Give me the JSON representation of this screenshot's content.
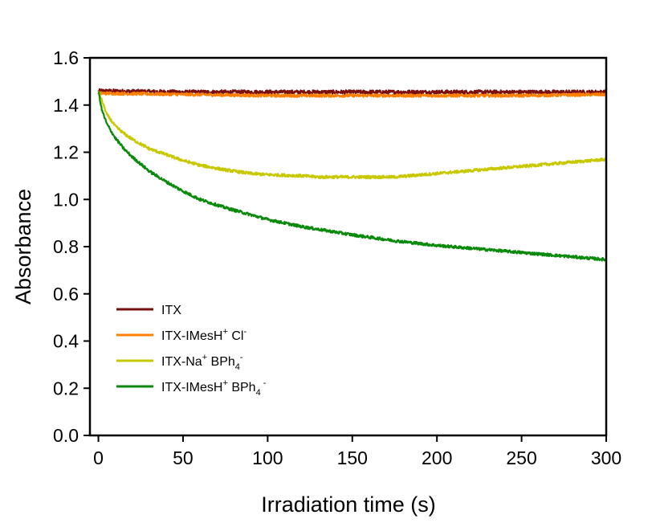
{
  "chart_data": {
    "type": "line",
    "title": "",
    "xlabel": "Irradiation time (s)",
    "ylabel": "Absorbance",
    "xlim": [
      -5,
      300
    ],
    "ylim": [
      0.0,
      1.6
    ],
    "xticks": [
      0,
      50,
      100,
      150,
      200,
      250,
      300
    ],
    "yticks": [
      0.0,
      0.2,
      0.4,
      0.6,
      0.8,
      1.0,
      1.2,
      1.4,
      1.6
    ],
    "xtick_labels": [
      "0",
      "50",
      "100",
      "150",
      "200",
      "250",
      "300"
    ],
    "ytick_labels": [
      "0.0",
      "0.2",
      "0.4",
      "0.6",
      "0.8",
      "1.0",
      "1.2",
      "1.4",
      "1.6"
    ],
    "grid": false,
    "legend_position": "bottom-left",
    "series": [
      {
        "name": "ITX",
        "legend_base": "ITX",
        "legend_sup1": "",
        "legend_mid": "",
        "legend_sub": "",
        "legend_sup2": "",
        "color": "#7a0f0f",
        "noise": 0.008,
        "x": [
          0,
          50,
          100,
          150,
          200,
          250,
          300
        ],
        "y": [
          1.46,
          1.455,
          1.455,
          1.455,
          1.455,
          1.455,
          1.455
        ]
      },
      {
        "name": "ITX-IMesH+ Cl-",
        "legend_base": "ITX-IMesH",
        "legend_sup1": "+",
        "legend_mid": " Cl",
        "legend_sub": "",
        "legend_sup2": "-",
        "color": "#ff8000",
        "noise": 0.006,
        "x": [
          0,
          50,
          100,
          150,
          200,
          250,
          300
        ],
        "y": [
          1.45,
          1.445,
          1.44,
          1.44,
          1.44,
          1.44,
          1.445
        ]
      },
      {
        "name": "ITX-Na+ BPh4-",
        "legend_base": "ITX-Na",
        "legend_sup1": "+",
        "legend_mid": " BPh",
        "legend_sub": "4",
        "legend_sup2": "-",
        "color": "#c8c800",
        "noise": 0.006,
        "x": [
          0,
          2,
          5,
          10,
          15,
          20,
          30,
          40,
          50,
          60,
          75,
          90,
          100,
          120,
          130,
          150,
          175,
          200,
          225,
          250,
          275,
          300
        ],
        "y": [
          1.46,
          1.42,
          1.36,
          1.31,
          1.28,
          1.255,
          1.215,
          1.19,
          1.165,
          1.145,
          1.125,
          1.11,
          1.105,
          1.1,
          1.095,
          1.095,
          1.095,
          1.11,
          1.125,
          1.14,
          1.155,
          1.17
        ]
      },
      {
        "name": "ITX-IMesH+ BPh4 -",
        "legend_base": "ITX-IMesH",
        "legend_sup1": "+",
        "legend_mid": " BPh",
        "legend_sub": "4",
        "legend_sup2": " -",
        "color": "#0a8a0a",
        "noise": 0.006,
        "x": [
          0,
          2,
          5,
          10,
          15,
          20,
          30,
          40,
          50,
          60,
          75,
          90,
          100,
          120,
          150,
          175,
          200,
          225,
          250,
          275,
          300
        ],
        "y": [
          1.46,
          1.38,
          1.32,
          1.26,
          1.215,
          1.18,
          1.12,
          1.075,
          1.035,
          1.0,
          0.965,
          0.935,
          0.915,
          0.885,
          0.85,
          0.825,
          0.805,
          0.79,
          0.775,
          0.76,
          0.745
        ]
      }
    ]
  }
}
